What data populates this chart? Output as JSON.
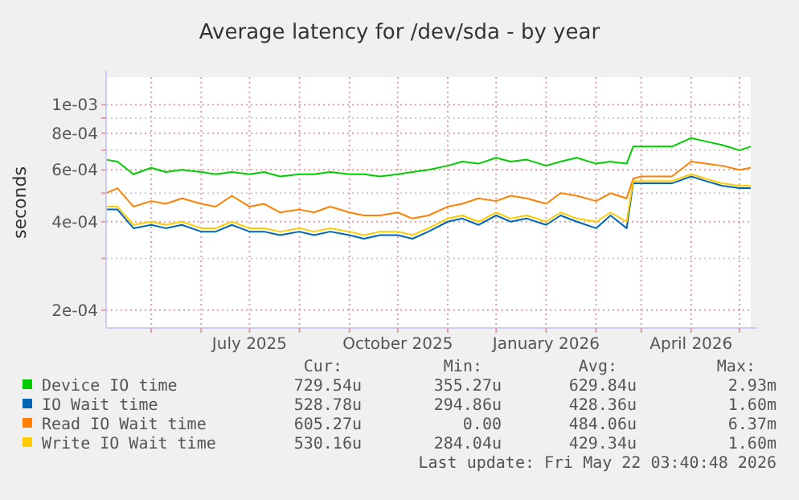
{
  "chart_data": {
    "type": "line",
    "title": "Average latency for /dev/sda - by year",
    "ylabel": "seconds",
    "log": "y",
    "grid": true,
    "legend": "bottom",
    "marker": "none",
    "line_style": "solid",
    "x": [
      "2025-04-03",
      "2025-04-10",
      "2025-04-20",
      "2025-05-01",
      "2025-05-10",
      "2025-05-20",
      "2025-06-01",
      "2025-06-10",
      "2025-06-20",
      "2025-07-01",
      "2025-07-10",
      "2025-07-20",
      "2025-08-01",
      "2025-08-10",
      "2025-08-20",
      "2025-09-01",
      "2025-09-10",
      "2025-09-20",
      "2025-10-01",
      "2025-10-10",
      "2025-10-20",
      "2025-11-01",
      "2025-11-10",
      "2025-11-20",
      "2025-12-01",
      "2025-12-10",
      "2025-12-20",
      "2026-01-01",
      "2026-01-10",
      "2026-01-20",
      "2026-02-01",
      "2026-02-10",
      "2026-02-20",
      "2026-02-24",
      "2026-03-01",
      "2026-03-10",
      "2026-03-20",
      "2026-04-01",
      "2026-04-10",
      "2026-04-20",
      "2026-05-01",
      "2026-05-08"
    ],
    "xlim": [
      "2025-04-03",
      "2026-05-08"
    ],
    "xticks": [
      {
        "value": "2025-05-01",
        "label": null
      },
      {
        "value": "2025-06-01",
        "label": null
      },
      {
        "value": "2025-07-01",
        "label": "July 2025"
      },
      {
        "value": "2025-08-01",
        "label": null
      },
      {
        "value": "2025-09-01",
        "label": null
      },
      {
        "value": "2025-10-01",
        "label": "October 2025"
      },
      {
        "value": "2025-11-01",
        "label": null
      },
      {
        "value": "2025-12-01",
        "label": null
      },
      {
        "value": "2026-01-01",
        "label": "January 2026"
      },
      {
        "value": "2026-02-01",
        "label": null
      },
      {
        "value": "2026-03-01",
        "label": null
      },
      {
        "value": "2026-04-01",
        "label": "April 2026"
      },
      {
        "value": "2026-05-01",
        "label": null
      }
    ],
    "ylim": [
      0.000174,
      0.00124
    ],
    "yticks": [
      {
        "value": 0.0002,
        "label": "2e-04"
      },
      {
        "value": 0.0003,
        "label": null
      },
      {
        "value": 0.0004,
        "label": "4e-04"
      },
      {
        "value": 0.0005,
        "label": null
      },
      {
        "value": 0.0006,
        "label": "6e-04"
      },
      {
        "value": 0.0007,
        "label": null
      },
      {
        "value": 0.0008,
        "label": "8e-04"
      },
      {
        "value": 0.0009,
        "label": null
      },
      {
        "value": 0.001,
        "label": "1e-03"
      }
    ],
    "series": [
      {
        "name": "Device IO time",
        "color": "#00cc00",
        "values": [
          0.00065,
          0.00064,
          0.00058,
          0.00061,
          0.00059,
          0.0006,
          0.00059,
          0.00058,
          0.00059,
          0.00058,
          0.00059,
          0.00057,
          0.00058,
          0.00058,
          0.00059,
          0.00058,
          0.00058,
          0.00057,
          0.00058,
          0.00059,
          0.0006,
          0.00062,
          0.00064,
          0.00063,
          0.00066,
          0.00064,
          0.00065,
          0.00062,
          0.00064,
          0.00066,
          0.00063,
          0.00064,
          0.00063,
          0.00072,
          0.00072,
          0.00072,
          0.00072,
          0.00077,
          0.00075,
          0.00073,
          0.0007,
          0.00072
        ]
      },
      {
        "name": "IO Wait time",
        "color": "#0066b3",
        "values": [
          0.00044,
          0.00044,
          0.00038,
          0.00039,
          0.00038,
          0.00039,
          0.00037,
          0.00037,
          0.00039,
          0.00037,
          0.00037,
          0.00036,
          0.00037,
          0.00036,
          0.00037,
          0.00036,
          0.00035,
          0.00036,
          0.00036,
          0.00035,
          0.00037,
          0.0004,
          0.00041,
          0.00039,
          0.00042,
          0.0004,
          0.00041,
          0.00039,
          0.00042,
          0.0004,
          0.00038,
          0.00042,
          0.00038,
          0.00054,
          0.00054,
          0.00054,
          0.00054,
          0.00057,
          0.00055,
          0.00053,
          0.00052,
          0.00052
        ]
      },
      {
        "name": "Read IO Wait time",
        "color": "#ff8000",
        "values": [
          0.0005,
          0.00052,
          0.00045,
          0.00047,
          0.00046,
          0.00048,
          0.00046,
          0.00045,
          0.00049,
          0.00045,
          0.00046,
          0.00043,
          0.00044,
          0.00043,
          0.00045,
          0.00043,
          0.00042,
          0.00042,
          0.00043,
          0.00041,
          0.00042,
          0.00045,
          0.00046,
          0.00048,
          0.00047,
          0.00049,
          0.00048,
          0.00046,
          0.0005,
          0.00049,
          0.00047,
          0.0005,
          0.00048,
          0.00056,
          0.00057,
          0.00057,
          0.00057,
          0.00064,
          0.00063,
          0.00062,
          0.0006,
          0.00061
        ]
      },
      {
        "name": "Write IO Wait time",
        "color": "#ffcc00",
        "values": [
          0.00045,
          0.00045,
          0.00039,
          0.0004,
          0.00039,
          0.0004,
          0.00038,
          0.00038,
          0.0004,
          0.00038,
          0.00038,
          0.00037,
          0.00038,
          0.00037,
          0.00038,
          0.00037,
          0.00036,
          0.00037,
          0.00037,
          0.00036,
          0.00038,
          0.00041,
          0.00042,
          0.0004,
          0.00043,
          0.00041,
          0.00042,
          0.0004,
          0.00043,
          0.00041,
          0.0004,
          0.00043,
          0.0004,
          0.00055,
          0.00055,
          0.00055,
          0.00055,
          0.00058,
          0.00056,
          0.00054,
          0.00053,
          0.00053
        ]
      }
    ],
    "annotations": [
      "Cur:",
      "Min:",
      "Avg:",
      "Max:",
      "729.54u",
      "355.27u",
      "629.84u",
      "2.93m",
      "528.78u",
      "294.86u",
      "428.36u",
      "1.60m",
      "605.27u",
      "0.00",
      "484.06u",
      "6.37m",
      "530.16u",
      "284.04u",
      "429.34u",
      "1.60m",
      "Last update: Fri May 22 03:40:48 2026"
    ]
  }
}
